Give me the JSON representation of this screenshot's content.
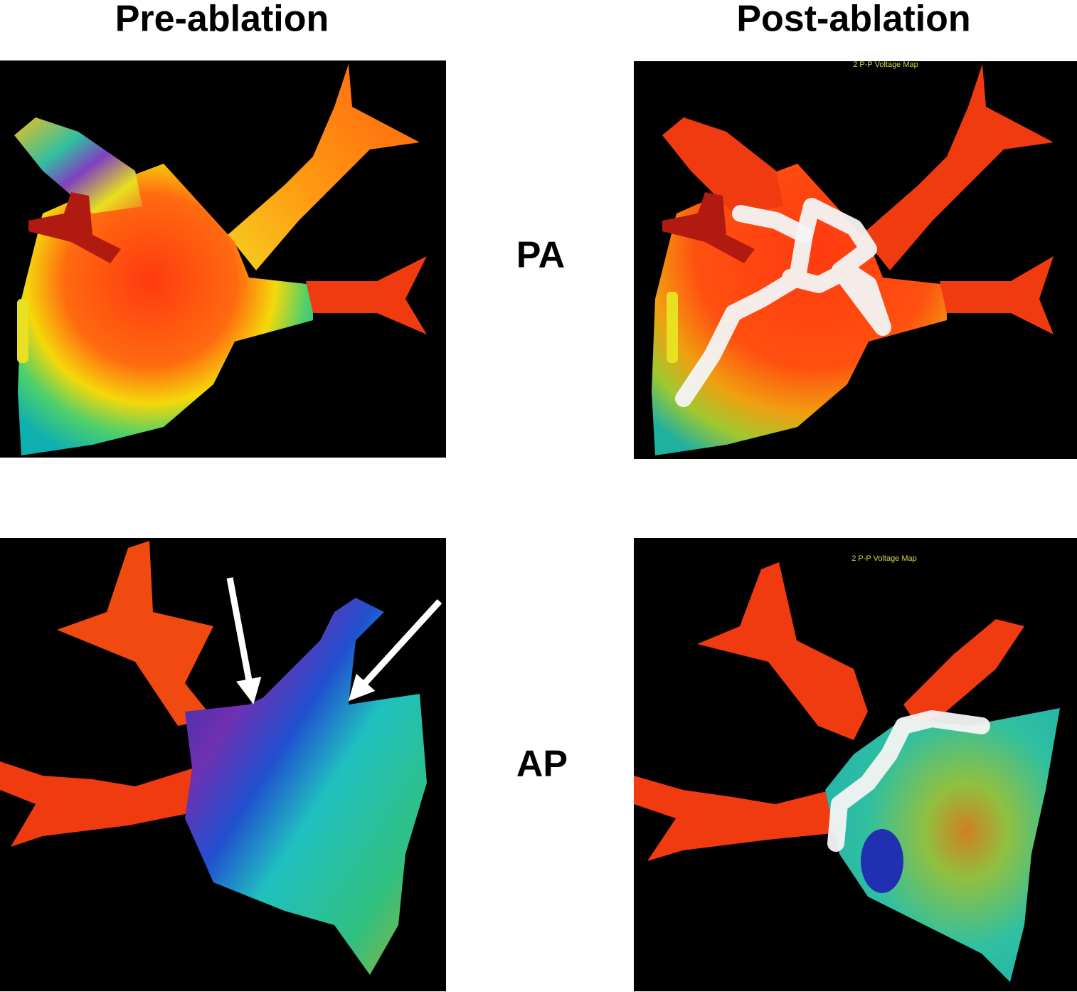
{
  "columns": [
    {
      "title": "Pre-ablation"
    },
    {
      "title": "Post-ablation"
    }
  ],
  "rows": [
    {
      "label": "PA"
    },
    {
      "label": "AP"
    }
  ],
  "map_captions": [
    "2 P-P Voltage Map",
    "2 P-P Voltage Map"
  ]
}
